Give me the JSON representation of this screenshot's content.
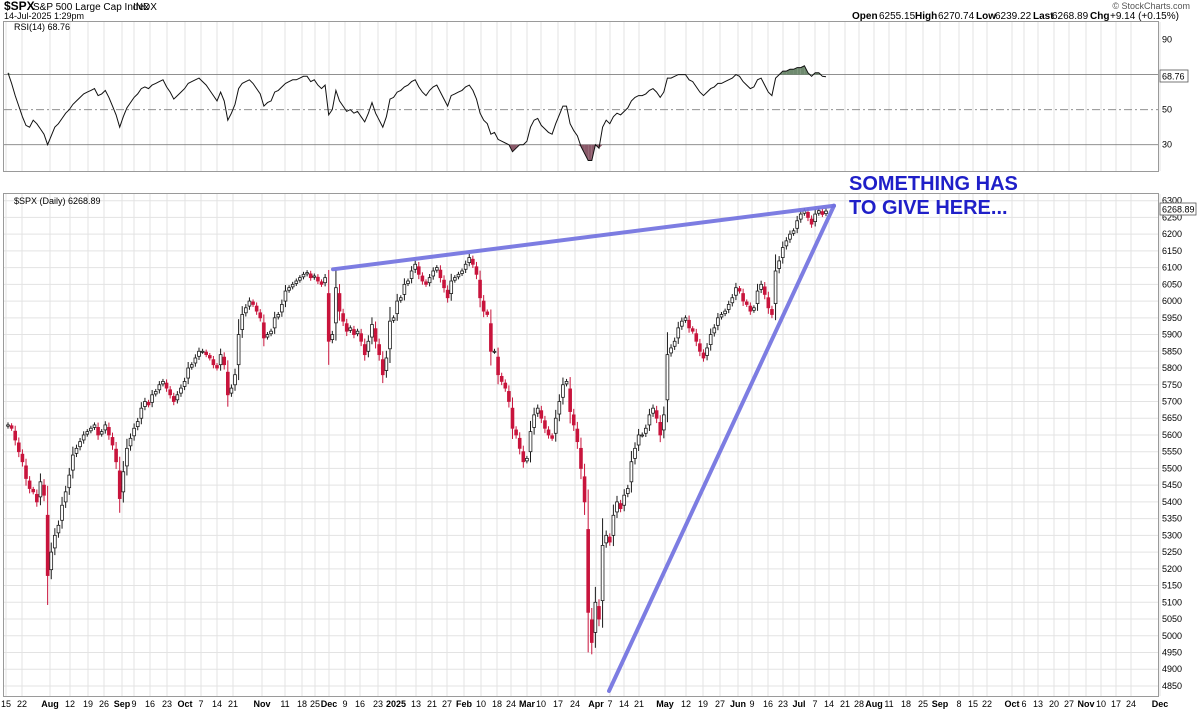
{
  "header": {
    "symbol": "$SPX",
    "name": "S&P 500 Large Cap Index",
    "exchange": "INDX",
    "date": "14-Jul-2025 1:29pm",
    "credit": "© StockCharts.com",
    "open_label": "Open",
    "open": "6255.15",
    "high_label": "High",
    "high": "6270.74",
    "low_label": "Low",
    "low": "6239.22",
    "last_label": "Last",
    "last": "6268.89",
    "chg_label": "Chg",
    "chg": "+9.14 (+0.15%)",
    "chg_color": "#2a8a2a"
  },
  "rsi_panel": {
    "label": "RSI(14) 68.76",
    "current_tag": "68.76"
  },
  "price_panel": {
    "label": "$SPX (Daily) 6268.89",
    "current_tag": "6268.89"
  },
  "annotation": {
    "line1": "SOMETHING HAS",
    "line2": "TO GIVE HERE...",
    "color": "#1f1fc8"
  },
  "chart_data": [
    {
      "type": "candlestick",
      "panel": "price",
      "series_name": "$SPX (Daily)",
      "ylim": [
        4820,
        6320
      ],
      "y_ticks": [
        4850,
        4900,
        4950,
        5000,
        5050,
        5100,
        5150,
        5200,
        5250,
        5300,
        5350,
        5400,
        5450,
        5500,
        5550,
        5600,
        5650,
        5700,
        5750,
        5800,
        5850,
        5900,
        5950,
        6000,
        6050,
        6100,
        6150,
        6200,
        6250,
        6300
      ],
      "x_labels": [
        "15",
        "22",
        "Aug",
        "12",
        "19",
        "26",
        "Sep",
        "9",
        "16",
        "23",
        "Oct",
        "7",
        "14",
        "21",
        "Nov",
        "11",
        "18",
        "25",
        "Dec",
        "9",
        "16",
        "23",
        "2025",
        "13",
        "21",
        "27",
        "Feb",
        "10",
        "18",
        "24",
        "Mar",
        "10",
        "17",
        "24",
        "Apr",
        "7",
        "14",
        "21",
        "May",
        "12",
        "19",
        "27",
        "Jun",
        "9",
        "16",
        "23",
        "Jul",
        "7",
        "14",
        "21",
        "28",
        "Aug",
        "11",
        "18",
        "25",
        "Sep",
        "8",
        "15",
        "22",
        "Oct",
        "6",
        "13",
        "20",
        "27",
        "Nov",
        "10",
        "17",
        "24",
        "Dec"
      ],
      "bold_labels": [
        "Aug",
        "Sep",
        "Oct",
        "Nov",
        "Dec",
        "2025",
        "Feb",
        "Mar",
        "Apr",
        "May",
        "Jun",
        "Jul"
      ],
      "closes": [
        5630,
        5620,
        5585,
        5550,
        5520,
        5470,
        5440,
        5430,
        5400,
        5460,
        5420,
        5180,
        5250,
        5300,
        5330,
        5390,
        5430,
        5480,
        5540,
        5560,
        5580,
        5600,
        5610,
        5620,
        5630,
        5600,
        5610,
        5630,
        5600,
        5570,
        5520,
        5410,
        5490,
        5560,
        5590,
        5620,
        5640,
        5680,
        5700,
        5690,
        5720,
        5730,
        5750,
        5760,
        5740,
        5720,
        5700,
        5720,
        5740,
        5760,
        5800,
        5810,
        5830,
        5850,
        5850,
        5840,
        5830,
        5810,
        5800,
        5840,
        5810,
        5720,
        5740,
        5780,
        5900,
        5960,
        5980,
        6000,
        5990,
        5970,
        5950,
        5890,
        5900,
        5910,
        5950,
        5960,
        5990,
        6030,
        6040,
        6050,
        6060,
        6070,
        6080,
        6085,
        6070,
        6075,
        6060,
        6050,
        6070,
        5880,
        5900,
        6040,
        5970,
        5940,
        5910,
        5920,
        5900,
        5910,
        5880,
        5840,
        5880,
        5930,
        5880,
        5840,
        5780,
        5830,
        5940,
        5950,
        6000,
        6010,
        6050,
        6060,
        6090,
        6110,
        6080,
        6060,
        6050,
        6070,
        6090,
        6100,
        6070,
        6040,
        6010,
        6060,
        6070,
        6080,
        6090,
        6110,
        6130,
        6110,
        6080,
        6010,
        5970,
        5960,
        5850,
        5850,
        5780,
        5760,
        5740,
        5700,
        5620,
        5600,
        5560,
        5520,
        5530,
        5610,
        5660,
        5680,
        5650,
        5620,
        5600,
        5590,
        5650,
        5700,
        5750,
        5760,
        5670,
        5630,
        5580,
        5500,
        5400,
        5070,
        4980,
        5100,
        5050,
        5270,
        5300,
        5280,
        5360,
        5400,
        5380,
        5420,
        5440,
        5520,
        5560,
        5600,
        5600,
        5620,
        5660,
        5680,
        5650,
        5600,
        5660,
        5840,
        5860,
        5880,
        5920,
        5940,
        5950,
        5920,
        5910,
        5880,
        5850,
        5830,
        5860,
        5900,
        5920,
        5950,
        5960,
        5970,
        5990,
        6010,
        6040,
        6030,
        6000,
        5990,
        5970,
        5980,
        6030,
        6050,
        6020,
        5980,
        5960,
        6090,
        6120,
        6160,
        6180,
        6200,
        6210,
        6240,
        6260,
        6270,
        6250,
        6230,
        6260,
        6270,
        6259,
        6269
      ],
      "trendlines": [
        {
          "from": {
            "date": "Dec 5",
            "value": 6095
          },
          "to": {
            "date": "Jul 14",
            "value": 6285
          }
        },
        {
          "from": {
            "date": "Apr 7",
            "value": 4835
          },
          "to": {
            "date": "Jul 14",
            "value": 6285
          }
        }
      ]
    },
    {
      "type": "line",
      "panel": "rsi",
      "series_name": "RSI(14)",
      "ylim": [
        15,
        100
      ],
      "y_ticks": [
        90,
        50,
        30
      ],
      "reference_lines": [
        70,
        50,
        30
      ],
      "values": [
        71,
        65,
        58,
        52,
        46,
        41,
        40,
        44,
        42,
        39,
        36,
        30,
        35,
        40,
        42,
        45,
        48,
        50,
        53,
        55,
        57,
        59,
        60,
        61,
        62,
        58,
        59,
        61,
        57,
        52,
        47,
        40,
        46,
        51,
        54,
        57,
        59,
        62,
        63,
        62,
        64,
        65,
        66,
        67,
        63,
        60,
        56,
        58,
        60,
        62,
        65,
        66,
        67,
        68,
        66,
        64,
        61,
        58,
        55,
        60,
        55,
        44,
        48,
        53,
        62,
        65,
        66,
        67,
        65,
        62,
        59,
        52,
        54,
        55,
        60,
        61,
        63,
        65,
        66,
        67,
        67,
        68,
        69,
        69,
        66,
        67,
        64,
        62,
        64,
        47,
        50,
        61,
        55,
        52,
        49,
        50,
        48,
        49,
        46,
        43,
        48,
        54,
        48,
        44,
        40,
        46,
        56,
        57,
        60,
        61,
        63,
        64,
        66,
        67,
        63,
        60,
        58,
        61,
        63,
        64,
        60,
        56,
        52,
        58,
        59,
        60,
        61,
        63,
        64,
        61,
        56,
        48,
        44,
        42,
        36,
        37,
        33,
        32,
        31,
        30,
        26,
        28,
        30,
        30,
        32,
        40,
        44,
        45,
        41,
        39,
        37,
        36,
        42,
        47,
        52,
        52,
        42,
        38,
        35,
        29,
        25,
        21,
        21,
        30,
        28,
        40,
        44,
        42,
        46,
        48,
        47,
        49,
        51,
        55,
        57,
        58,
        58,
        59,
        61,
        62,
        60,
        57,
        60,
        68,
        68,
        69,
        70,
        70,
        70,
        67,
        66,
        63,
        60,
        58,
        60,
        62,
        63,
        65,
        65,
        66,
        67,
        68,
        70,
        69,
        66,
        64,
        62,
        63,
        67,
        68,
        64,
        60,
        58,
        68,
        70,
        72,
        72,
        73,
        73,
        74,
        74,
        75,
        71,
        69,
        71,
        71,
        69,
        68.76
      ]
    }
  ]
}
